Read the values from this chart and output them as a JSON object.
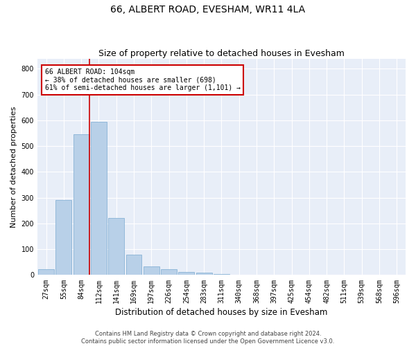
{
  "title": "66, ALBERT ROAD, EVESHAM, WR11 4LA",
  "subtitle": "Size of property relative to detached houses in Evesham",
  "xlabel": "Distribution of detached houses by size in Evesham",
  "ylabel": "Number of detached properties",
  "bar_color": "#b8d0e8",
  "bar_edge_color": "#7aaad0",
  "background_color": "#e8eef8",
  "grid_color": "#ffffff",
  "fig_background": "#ffffff",
  "categories": [
    "27sqm",
    "55sqm",
    "84sqm",
    "112sqm",
    "141sqm",
    "169sqm",
    "197sqm",
    "226sqm",
    "254sqm",
    "283sqm",
    "311sqm",
    "340sqm",
    "368sqm",
    "397sqm",
    "425sqm",
    "454sqm",
    "482sqm",
    "511sqm",
    "539sqm",
    "568sqm",
    "596sqm"
  ],
  "values": [
    22,
    290,
    545,
    595,
    222,
    80,
    33,
    22,
    12,
    9,
    5,
    0,
    0,
    0,
    0,
    0,
    0,
    0,
    0,
    0,
    0
  ],
  "ylim": [
    0,
    840
  ],
  "yticks": [
    0,
    100,
    200,
    300,
    400,
    500,
    600,
    700,
    800
  ],
  "annotation_text": "66 ALBERT ROAD: 104sqm\n← 38% of detached houses are smaller (698)\n61% of semi-detached houses are larger (1,101) →",
  "annotation_box_color": "#ffffff",
  "annotation_box_edge_color": "#cc0000",
  "footer_line1": "Contains HM Land Registry data © Crown copyright and database right 2024.",
  "footer_line2": "Contains public sector information licensed under the Open Government Licence v3.0.",
  "red_line_color": "#cc0000",
  "title_fontsize": 10,
  "subtitle_fontsize": 9,
  "tick_fontsize": 7,
  "ylabel_fontsize": 8,
  "xlabel_fontsize": 8.5,
  "annotation_fontsize": 7,
  "footer_fontsize": 6
}
